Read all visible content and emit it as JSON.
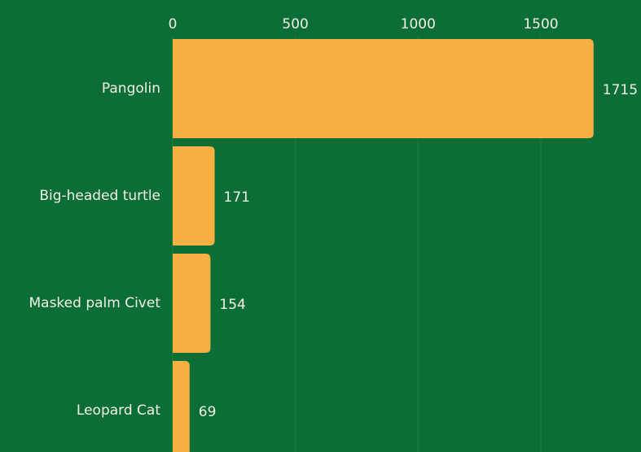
{
  "chart_data": {
    "type": "bar",
    "orientation": "horizontal",
    "categories": [
      "Pangolin",
      "Big-headed turtle",
      "Masked palm Civet",
      "Leopard Cat"
    ],
    "values": [
      1715,
      171,
      154,
      69
    ],
    "color": "#f9b042",
    "xlim": [
      0,
      1900
    ],
    "xticks": [
      0,
      500,
      1000,
      1500
    ],
    "grid": true
  }
}
